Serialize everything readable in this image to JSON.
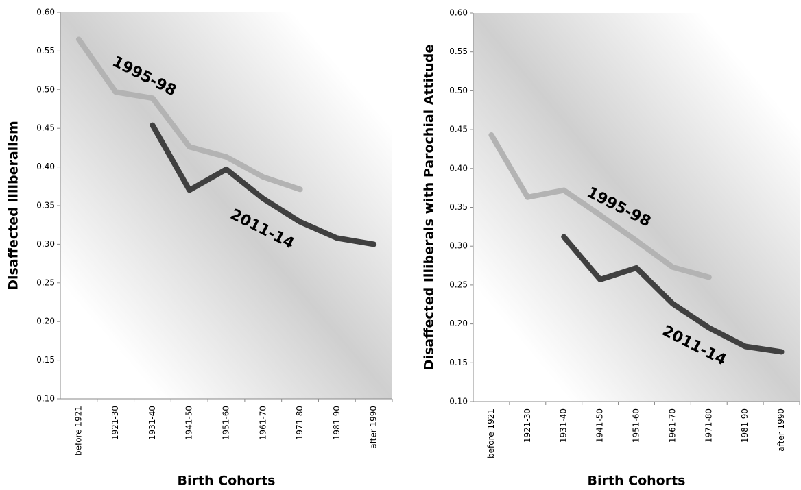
{
  "chart_data": [
    {
      "type": "line",
      "ylabel": "Disaffected Illiberalism",
      "xlabel": "Birth Cohorts",
      "categories": [
        "before 1921",
        "1921-30",
        "1931-40",
        "1941-50",
        "1951-60",
        "1961-70",
        "1971-80",
        "1981-90",
        "after 1990"
      ],
      "series": [
        {
          "name": "1995-98",
          "color": "#b3b3b3",
          "values": [
            0.565,
            0.497,
            0.489,
            0.426,
            0.413,
            0.387,
            0.371,
            null,
            null
          ]
        },
        {
          "name": "2011-14",
          "color": "#404040",
          "values": [
            null,
            null,
            0.454,
            0.37,
            0.397,
            0.359,
            0.329,
            0.308,
            0.3
          ]
        }
      ],
      "ylim": [
        0.1,
        0.6
      ],
      "yticks": [
        {
          "value": 0.1,
          "label": "0.10"
        },
        {
          "value": 0.15,
          "label": "0.15"
        },
        {
          "value": 0.2,
          "label": "0.20"
        },
        {
          "value": 0.25,
          "label": "0.25"
        },
        {
          "value": 0.3,
          "label": "0.30"
        },
        {
          "value": 0.35,
          "label": "0.35"
        },
        {
          "value": 0.4,
          "label": "0.40"
        },
        {
          "value": 0.45,
          "label": "0.45"
        },
        {
          "value": 0.5,
          "label": "0.50"
        },
        {
          "value": 0.55,
          "label": "0.55"
        },
        {
          "value": 0.6,
          "label": "0.60"
        }
      ]
    },
    {
      "type": "line",
      "ylabel": "Disaffected Illiberals with Parochial Attitude",
      "xlabel": "Birth Cohorts",
      "categories": [
        "before 1921",
        "1921-30",
        "1931-40",
        "1941-50",
        "1951-60",
        "1961-70",
        "1971-80",
        "1981-90",
        "after 1990"
      ],
      "series": [
        {
          "name": "1995-98",
          "color": "#b3b3b3",
          "values": [
            0.443,
            0.363,
            0.372,
            0.34,
            0.307,
            0.273,
            0.26,
            null,
            null
          ]
        },
        {
          "name": "2011-14",
          "color": "#404040",
          "values": [
            null,
            null,
            0.312,
            0.257,
            0.272,
            0.226,
            0.195,
            0.171,
            0.164
          ]
        }
      ],
      "ylim": [
        0.1,
        0.6
      ],
      "yticks": [
        {
          "value": 0.1,
          "label": "0.10"
        },
        {
          "value": 0.15,
          "label": "0.15"
        },
        {
          "value": 0.2,
          "label": "0.20"
        },
        {
          "value": 0.25,
          "label": "0.25"
        },
        {
          "value": 0.3,
          "label": "0.30"
        },
        {
          "value": 0.35,
          "label": "0.35"
        },
        {
          "value": 0.4,
          "label": "0.40"
        },
        {
          "value": 0.45,
          "label": "0.45"
        },
        {
          "value": 0.5,
          "label": "0.50"
        },
        {
          "value": 0.55,
          "label": "0.55"
        },
        {
          "value": 0.6,
          "label": "0.60"
        }
      ]
    }
  ]
}
